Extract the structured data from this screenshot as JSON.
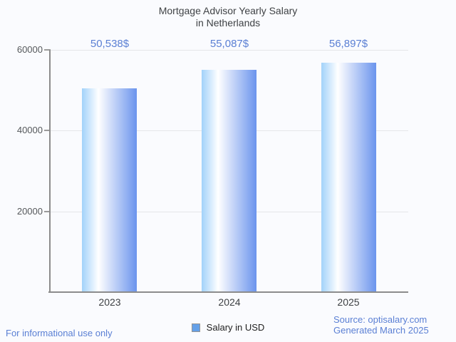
{
  "title": {
    "line1": "Mortgage Advisor Yearly Salary",
    "line2": "in Netherlands"
  },
  "chart_data": {
    "type": "bar",
    "title": "Mortgage Advisor Yearly Salary in Netherlands",
    "categories": [
      "2023",
      "2024",
      "2025"
    ],
    "values": [
      50538,
      55087,
      56897
    ],
    "value_labels": [
      "50,538$",
      "55,087$",
      "56,897$"
    ],
    "series_name": "Salary in USD",
    "xlabel": "",
    "ylabel": "",
    "ylim": [
      0,
      60000
    ],
    "yticks": [
      20000,
      40000,
      60000
    ],
    "ytick_labels": [
      "20000",
      "40000",
      "60000"
    ],
    "grid": true,
    "legend_label": "Salary in USD",
    "legend_position": "bottom"
  },
  "colors": {
    "accent_blue": "#5a7fd4",
    "bar_gradient_left": "#a2d2fa",
    "bar_gradient_mid": "#ffffff",
    "bar_gradient_right": "#6b94ed",
    "legend_swatch": "#64a0e8",
    "axis_line": "#8c8c8c",
    "gridline": "#e5e6e9",
    "title_text": "#3f4245"
  },
  "footer": {
    "left": "For informational use only",
    "source": "Source: optisalary.com",
    "generated": "Generated March 2025"
  }
}
